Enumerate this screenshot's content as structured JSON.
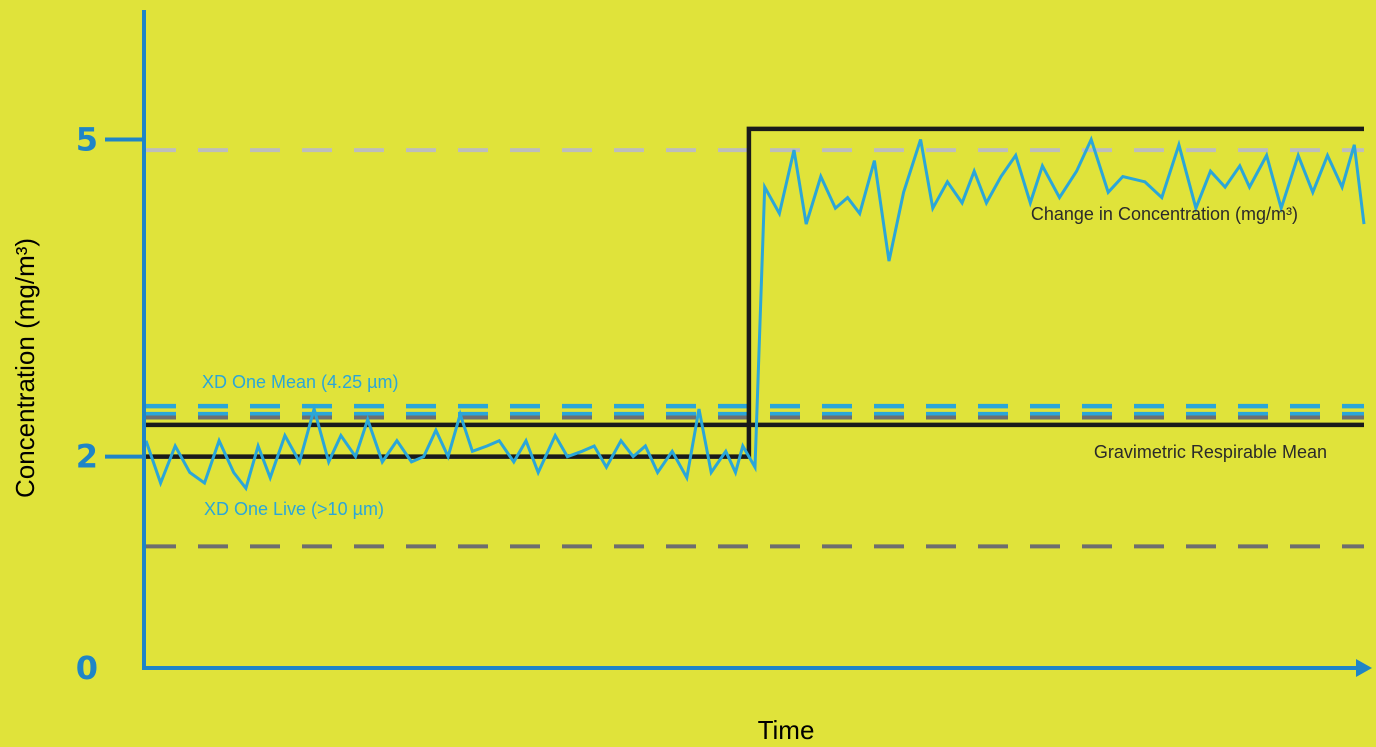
{
  "colors": {
    "background": "#e0e33a",
    "axis": "#1f85c6",
    "live": "#2ba6d8",
    "mean": "#2ba6d8",
    "gravimetric": "#1a1a1a",
    "change": "#1a1a1a",
    "grey_dash": "#6e6e6e",
    "light_dash": "#bdbdbd",
    "text": "#2a2a2a"
  },
  "chart_data": {
    "type": "line",
    "xlabel": "Time",
    "ylabel": "Concentration (mg/m³)",
    "yticks": [
      0,
      2,
      5
    ],
    "ylim": [
      0,
      7.7
    ],
    "xlim": [
      0,
      100
    ],
    "series": [
      {
        "name": "Change in Concentration (mg/m³)",
        "style": "solid",
        "color": "#1a1a1a",
        "points": [
          [
            0,
            2.0
          ],
          [
            49.5,
            2.0
          ],
          [
            49.5,
            5.1
          ],
          [
            100,
            5.1
          ]
        ]
      },
      {
        "name": "Gravimetric Respirable Mean",
        "style": "solid",
        "color": "#1a1a1a",
        "points": [
          [
            0,
            2.3
          ],
          [
            100,
            2.3
          ]
        ]
      },
      {
        "name": "XD One Mean (4.25 µm)",
        "style": "dashed-double",
        "color": "#2ba6d8",
        "points": [
          [
            0,
            2.44
          ],
          [
            100,
            2.44
          ]
        ]
      },
      {
        "name": "",
        "style": "dashed",
        "color": "#6e6e6e",
        "points": [
          [
            0,
            2.37
          ],
          [
            100,
            2.37
          ]
        ]
      },
      {
        "name": "",
        "style": "dashed",
        "color": "#6e6e6e",
        "points": [
          [
            0,
            1.15
          ],
          [
            100,
            1.15
          ]
        ]
      },
      {
        "name": "",
        "style": "dashed",
        "color": "#bdbdbd",
        "points": [
          [
            0,
            4.9
          ],
          [
            100,
            4.9
          ]
        ]
      },
      {
        "name": "XD One Live (>10 µm)",
        "style": "solid",
        "color": "#2ba6d8",
        "points": [
          [
            0.0,
            2.15
          ],
          [
            1.2,
            1.75
          ],
          [
            2.4,
            2.1
          ],
          [
            3.6,
            1.85
          ],
          [
            4.8,
            1.75
          ],
          [
            6.0,
            2.15
          ],
          [
            7.2,
            1.85
          ],
          [
            8.2,
            1.7
          ],
          [
            9.2,
            2.1
          ],
          [
            10.2,
            1.8
          ],
          [
            11.4,
            2.2
          ],
          [
            12.6,
            1.95
          ],
          [
            13.8,
            2.45
          ],
          [
            15.0,
            1.95
          ],
          [
            16.0,
            2.2
          ],
          [
            17.2,
            2.0
          ],
          [
            18.2,
            2.35
          ],
          [
            19.4,
            1.95
          ],
          [
            20.6,
            2.15
          ],
          [
            21.8,
            1.95
          ],
          [
            22.8,
            2.0
          ],
          [
            23.8,
            2.25
          ],
          [
            24.8,
            2.0
          ],
          [
            25.8,
            2.4
          ],
          [
            26.8,
            2.05
          ],
          [
            28.0,
            2.1
          ],
          [
            29.0,
            2.15
          ],
          [
            30.2,
            1.95
          ],
          [
            31.2,
            2.15
          ],
          [
            32.2,
            1.85
          ],
          [
            33.6,
            2.2
          ],
          [
            34.6,
            2.0
          ],
          [
            35.8,
            2.05
          ],
          [
            36.8,
            2.1
          ],
          [
            37.8,
            1.9
          ],
          [
            39.0,
            2.15
          ],
          [
            40.0,
            2.0
          ],
          [
            41.0,
            2.1
          ],
          [
            42.0,
            1.85
          ],
          [
            43.2,
            2.05
          ],
          [
            44.4,
            1.8
          ],
          [
            45.4,
            2.45
          ],
          [
            46.4,
            1.85
          ],
          [
            47.6,
            2.05
          ],
          [
            48.4,
            1.85
          ],
          [
            49.0,
            2.1
          ],
          [
            50.0,
            1.9
          ],
          [
            50.8,
            4.55
          ],
          [
            52.0,
            4.3
          ],
          [
            53.2,
            4.9
          ],
          [
            54.2,
            4.2
          ],
          [
            55.4,
            4.65
          ],
          [
            56.6,
            4.35
          ],
          [
            57.6,
            4.45
          ],
          [
            58.6,
            4.3
          ],
          [
            59.8,
            4.8
          ],
          [
            61.0,
            3.85
          ],
          [
            62.2,
            4.5
          ],
          [
            63.6,
            5.0
          ],
          [
            64.6,
            4.35
          ],
          [
            65.8,
            4.6
          ],
          [
            67.0,
            4.4
          ],
          [
            68.0,
            4.7
          ],
          [
            69.0,
            4.4
          ],
          [
            70.2,
            4.65
          ],
          [
            71.4,
            4.85
          ],
          [
            72.6,
            4.4
          ],
          [
            73.6,
            4.75
          ],
          [
            75.0,
            4.45
          ],
          [
            76.4,
            4.7
          ],
          [
            77.6,
            5.0
          ],
          [
            79.0,
            4.5
          ],
          [
            80.2,
            4.65
          ],
          [
            82.0,
            4.6
          ],
          [
            83.4,
            4.45
          ],
          [
            84.8,
            4.95
          ],
          [
            86.2,
            4.35
          ],
          [
            87.4,
            4.7
          ],
          [
            88.6,
            4.55
          ],
          [
            89.8,
            4.75
          ],
          [
            90.6,
            4.55
          ],
          [
            92.0,
            4.85
          ],
          [
            93.2,
            4.35
          ],
          [
            94.6,
            4.85
          ],
          [
            95.8,
            4.5
          ],
          [
            97.0,
            4.85
          ],
          [
            98.2,
            4.55
          ],
          [
            99.2,
            4.95
          ],
          [
            100.0,
            4.2
          ]
        ]
      }
    ],
    "annotations": [
      {
        "text": "Change in Concentration (mg/m³)",
        "color": "#2a2a2a"
      },
      {
        "text": "Gravimetric Respirable Mean",
        "color": "#2a2a2a"
      },
      {
        "text": "XD One Mean (4.25 µm)",
        "color": "#2ba6d8"
      },
      {
        "text": "XD One Live (>10 µm)",
        "color": "#2ba6d8"
      }
    ]
  }
}
